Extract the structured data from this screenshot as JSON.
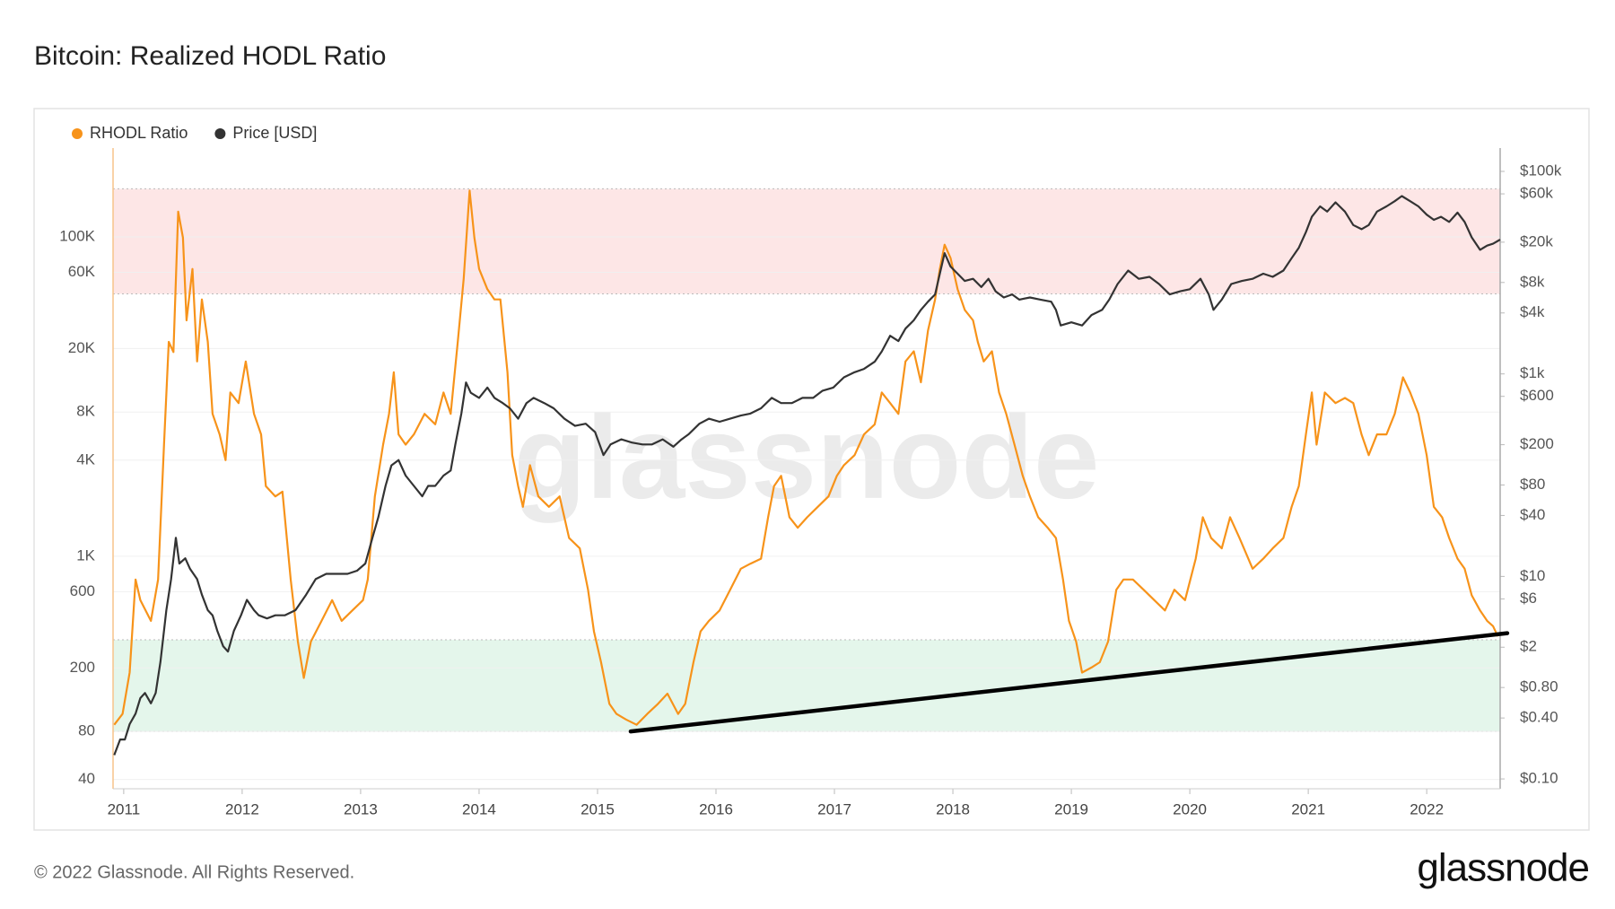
{
  "chart_data": {
    "type": "line",
    "title": "Bitcoin: Realized HODL Ratio",
    "watermark": "glassnode",
    "footer": "© 2022 Glassnode. All Rights Reserved.",
    "brand": "glassnode",
    "log_y": true,
    "log_y2": true,
    "grid": true,
    "legend": "top-left",
    "xlim": [
      2010.91,
      2022.62
    ],
    "xticks": [
      2011,
      2012,
      2013,
      2014,
      2015,
      2016,
      2017,
      2018,
      2019,
      2020,
      2021,
      2022
    ],
    "ylim": [
      35,
      360000
    ],
    "yticks": [
      40,
      80,
      200,
      600,
      {
        "value": 1000,
        "label": "1K"
      },
      {
        "value": 4000,
        "label": "4K"
      },
      {
        "value": 8000,
        "label": "8K"
      },
      {
        "value": 20000,
        "label": "20K"
      },
      {
        "value": 60000,
        "label": "60K"
      },
      {
        "value": 100000,
        "label": "100K"
      }
    ],
    "y2lim": [
      0.08,
      170000
    ],
    "y2ticks": [
      {
        "value": 0.1,
        "label": "$0.10"
      },
      {
        "value": 0.4,
        "label": "$0.40"
      },
      {
        "value": 0.8,
        "label": "$0.80"
      },
      {
        "value": 2,
        "label": "$2"
      },
      {
        "value": 6,
        "label": "$6"
      },
      {
        "value": 10,
        "label": "$10"
      },
      {
        "value": 40,
        "label": "$40"
      },
      {
        "value": 80,
        "label": "$80"
      },
      {
        "value": 200,
        "label": "$200"
      },
      {
        "value": 600,
        "label": "$600"
      },
      {
        "value": 1000,
        "label": "$1k"
      },
      {
        "value": 4000,
        "label": "$4k"
      },
      {
        "value": 8000,
        "label": "$8k"
      },
      {
        "value": 20000,
        "label": "$20k"
      },
      {
        "value": 60000,
        "label": "$60k"
      },
      {
        "value": 100000,
        "label": "$100k"
      }
    ],
    "bands": [
      {
        "range": [
          44000,
          200000
        ],
        "color": "#fde6e6"
      },
      {
        "range": [
          80,
          300
        ],
        "color": "#e4f6eb"
      }
    ],
    "trendline": {
      "x": [
        2015.28,
        2022.68
      ],
      "values": [
        80,
        330
      ],
      "color": "#000000"
    },
    "series": [
      {
        "name": "RHODL Ratio",
        "color": "#f7931a",
        "x": [
          2010.92,
          2010.99,
          2011.05,
          2011.1,
          2011.14,
          2011.23,
          2011.29,
          2011.34,
          2011.38,
          2011.42,
          2011.46,
          2011.5,
          2011.53,
          2011.58,
          2011.62,
          2011.66,
          2011.71,
          2011.75,
          2011.81,
          2011.86,
          2011.9,
          2011.97,
          2012.03,
          2012.1,
          2012.16,
          2012.2,
          2012.28,
          2012.34,
          2012.41,
          2012.47,
          2012.52,
          2012.58,
          2012.67,
          2012.76,
          2012.84,
          2012.93,
          2013.02,
          2013.06,
          2013.12,
          2013.19,
          2013.24,
          2013.28,
          2013.32,
          2013.38,
          2013.45,
          2013.54,
          2013.63,
          2013.7,
          2013.76,
          2013.82,
          2013.87,
          2013.92,
          2013.96,
          2014.0,
          2014.07,
          2014.13,
          2014.18,
          2014.24,
          2014.28,
          2014.33,
          2014.37,
          2014.43,
          2014.5,
          2014.59,
          2014.68,
          2014.76,
          2014.85,
          2014.92,
          2014.97,
          2015.03,
          2015.1,
          2015.16,
          2015.24,
          2015.33,
          2015.42,
          2015.51,
          2015.59,
          2015.68,
          2015.74,
          2015.81,
          2015.87,
          2015.94,
          2016.03,
          2016.12,
          2016.21,
          2016.29,
          2016.38,
          2016.44,
          2016.49,
          2016.55,
          2016.62,
          2016.69,
          2016.77,
          2016.86,
          2016.95,
          2017.02,
          2017.08,
          2017.17,
          2017.25,
          2017.34,
          2017.4,
          2017.47,
          2017.54,
          2017.6,
          2017.67,
          2017.73,
          2017.79,
          2017.85,
          2017.89,
          2017.93,
          2017.98,
          2018.04,
          2018.1,
          2018.17,
          2018.21,
          2018.26,
          2018.33,
          2018.39,
          2018.45,
          2018.52,
          2018.59,
          2018.65,
          2018.72,
          2018.8,
          2018.87,
          2018.93,
          2018.98,
          2019.04,
          2019.09,
          2019.17,
          2019.24,
          2019.31,
          2019.38,
          2019.44,
          2019.52,
          2019.61,
          2019.7,
          2019.79,
          2019.87,
          2019.96,
          2020.05,
          2020.11,
          2020.18,
          2020.27,
          2020.34,
          2020.42,
          2020.53,
          2020.62,
          2020.7,
          2020.79,
          2020.86,
          2020.92,
          2020.98,
          2021.03,
          2021.07,
          2021.14,
          2021.23,
          2021.31,
          2021.38,
          2021.45,
          2021.51,
          2021.58,
          2021.66,
          2021.73,
          2021.8,
          2021.86,
          2021.93,
          2022.0,
          2022.06,
          2022.13,
          2022.19,
          2022.26,
          2022.32,
          2022.38,
          2022.45,
          2022.51,
          2022.56,
          2022.6
        ],
        "values": [
          88,
          103,
          187,
          715,
          531,
          394,
          715,
          5000,
          22000,
          19000,
          144000,
          99000,
          30000,
          63000,
          16600,
          40600,
          22000,
          7800,
          5800,
          4000,
          10600,
          9100,
          16600,
          7800,
          5800,
          2750,
          2370,
          2540,
          715,
          292,
          173,
          292,
          394,
          531,
          394,
          458,
          531,
          715,
          2370,
          5000,
          7800,
          14200,
          5800,
          5000,
          5800,
          7800,
          6700,
          10600,
          7800,
          22000,
          54600,
          195000,
          99000,
          63000,
          47000,
          40600,
          40600,
          14200,
          4300,
          2750,
          2040,
          3720,
          2370,
          2040,
          2370,
          1300,
          1120,
          617,
          338,
          217,
          119,
          103,
          95,
          88,
          103,
          119,
          138,
          103,
          119,
          217,
          338,
          394,
          458,
          617,
          835,
          898,
          966,
          1757,
          2750,
          3190,
          1757,
          1510,
          1757,
          2040,
          2370,
          3190,
          3720,
          4300,
          5800,
          6700,
          10600,
          9100,
          7800,
          16600,
          19200,
          12300,
          25900,
          40600,
          63000,
          89400,
          73900,
          47000,
          34900,
          30000,
          22000,
          16600,
          19200,
          10600,
          7800,
          5000,
          3190,
          2370,
          1757,
          1510,
          1300,
          715,
          394,
          292,
          187,
          201,
          217,
          292,
          617,
          715,
          715,
          617,
          531,
          458,
          617,
          531,
          966,
          1757,
          1300,
          1120,
          1757,
          1300,
          835,
          966,
          1120,
          1300,
          2040,
          2750,
          5800,
          10600,
          5000,
          10600,
          9100,
          9800,
          9100,
          5800,
          4300,
          5800,
          5800,
          7800,
          13200,
          10600,
          7800,
          4300,
          2040,
          1757,
          1300,
          966,
          835,
          570,
          458,
          394,
          365,
          315
        ]
      },
      {
        "name": "Price [USD]",
        "color": "#333333",
        "axis": "y2",
        "x": [
          2010.92,
          2010.97,
          2011.01,
          2011.05,
          2011.1,
          2011.14,
          2011.18,
          2011.23,
          2011.27,
          2011.31,
          2011.36,
          2011.4,
          2011.44,
          2011.47,
          2011.52,
          2011.56,
          2011.62,
          2011.66,
          2011.71,
          2011.75,
          2011.79,
          2011.84,
          2011.88,
          2011.93,
          2011.99,
          2012.04,
          2012.1,
          2012.14,
          2012.21,
          2012.28,
          2012.36,
          2012.45,
          2012.54,
          2012.62,
          2012.71,
          2012.8,
          2012.89,
          2012.97,
          2013.04,
          2013.1,
          2013.15,
          2013.21,
          2013.26,
          2013.32,
          2013.38,
          2013.45,
          2013.52,
          2013.57,
          2013.63,
          2013.7,
          2013.76,
          2013.8,
          2013.85,
          2013.89,
          2013.93,
          2014.0,
          2014.07,
          2014.13,
          2014.2,
          2014.26,
          2014.33,
          2014.4,
          2014.46,
          2014.55,
          2014.63,
          2014.72,
          2014.81,
          2014.9,
          2014.98,
          2015.05,
          2015.11,
          2015.2,
          2015.29,
          2015.38,
          2015.46,
          2015.55,
          2015.64,
          2015.71,
          2015.77,
          2015.86,
          2015.94,
          2016.03,
          2016.12,
          2016.21,
          2016.29,
          2016.38,
          2016.47,
          2016.55,
          2016.64,
          2016.73,
          2016.82,
          2016.9,
          2016.99,
          2017.08,
          2017.17,
          2017.25,
          2017.34,
          2017.4,
          2017.47,
          2017.54,
          2017.6,
          2017.67,
          2017.73,
          2017.79,
          2017.85,
          2017.89,
          2017.93,
          2017.98,
          2018.04,
          2018.1,
          2018.17,
          2018.24,
          2018.3,
          2018.36,
          2018.43,
          2018.5,
          2018.56,
          2018.65,
          2018.74,
          2018.83,
          2018.87,
          2018.91,
          2019.0,
          2019.09,
          2019.17,
          2019.26,
          2019.32,
          2019.39,
          2019.48,
          2019.57,
          2019.66,
          2019.74,
          2019.83,
          2019.92,
          2020.0,
          2020.09,
          2020.16,
          2020.2,
          2020.27,
          2020.35,
          2020.44,
          2020.53,
          2020.62,
          2020.7,
          2020.79,
          2020.86,
          2020.92,
          2020.98,
          2021.03,
          2021.1,
          2021.16,
          2021.23,
          2021.31,
          2021.38,
          2021.45,
          2021.51,
          2021.58,
          2021.66,
          2021.73,
          2021.79,
          2021.86,
          2021.93,
          2022.0,
          2022.06,
          2022.12,
          2022.19,
          2022.26,
          2022.32,
          2022.38,
          2022.45,
          2022.51,
          2022.56,
          2022.62
        ],
        "values": [
          0.172,
          0.245,
          0.245,
          0.348,
          0.441,
          0.628,
          0.706,
          0.558,
          0.706,
          1.43,
          4.64,
          9.4,
          24.1,
          13.4,
          15.1,
          11.9,
          9.4,
          6.61,
          4.64,
          4.13,
          2.9,
          2.04,
          1.81,
          2.9,
          4.13,
          5.87,
          4.64,
          4.13,
          3.85,
          4.13,
          4.13,
          4.64,
          6.61,
          9.4,
          10.6,
          10.6,
          10.6,
          11.4,
          13.4,
          24.1,
          38.6,
          78.3,
          125,
          141,
          99,
          78.3,
          61.8,
          78.3,
          78.3,
          99,
          111,
          201,
          406,
          824,
          652,
          580,
          733,
          580,
          515,
          458,
          361,
          515,
          580,
          515,
          458,
          361,
          307,
          322,
          266,
          158,
          201,
          226,
          210,
          201,
          201,
          226,
          191,
          226,
          254,
          322,
          361,
          337,
          361,
          388,
          406,
          458,
          580,
          515,
          515,
          580,
          580,
          683,
          733,
          926,
          1040,
          1120,
          1320,
          1670,
          2380,
          2110,
          2800,
          3390,
          4290,
          5170,
          6100,
          9770,
          15600,
          11500,
          9770,
          8280,
          8690,
          7200,
          8690,
          6550,
          5690,
          6100,
          5420,
          5690,
          5420,
          5170,
          4290,
          3010,
          3230,
          3010,
          3810,
          4290,
          5420,
          7720,
          10500,
          8690,
          9100,
          7720,
          6100,
          6550,
          6860,
          8690,
          6100,
          4290,
          5420,
          7720,
          8280,
          8690,
          9770,
          9100,
          10500,
          13900,
          17600,
          25100,
          35600,
          45100,
          40100,
          49500,
          40100,
          29500,
          26900,
          29500,
          40100,
          45100,
          50800,
          57100,
          50800,
          45100,
          37400,
          33200,
          35600,
          31700,
          39200,
          31700,
          22300,
          16800,
          18500,
          19300,
          21200
        ]
      }
    ]
  }
}
